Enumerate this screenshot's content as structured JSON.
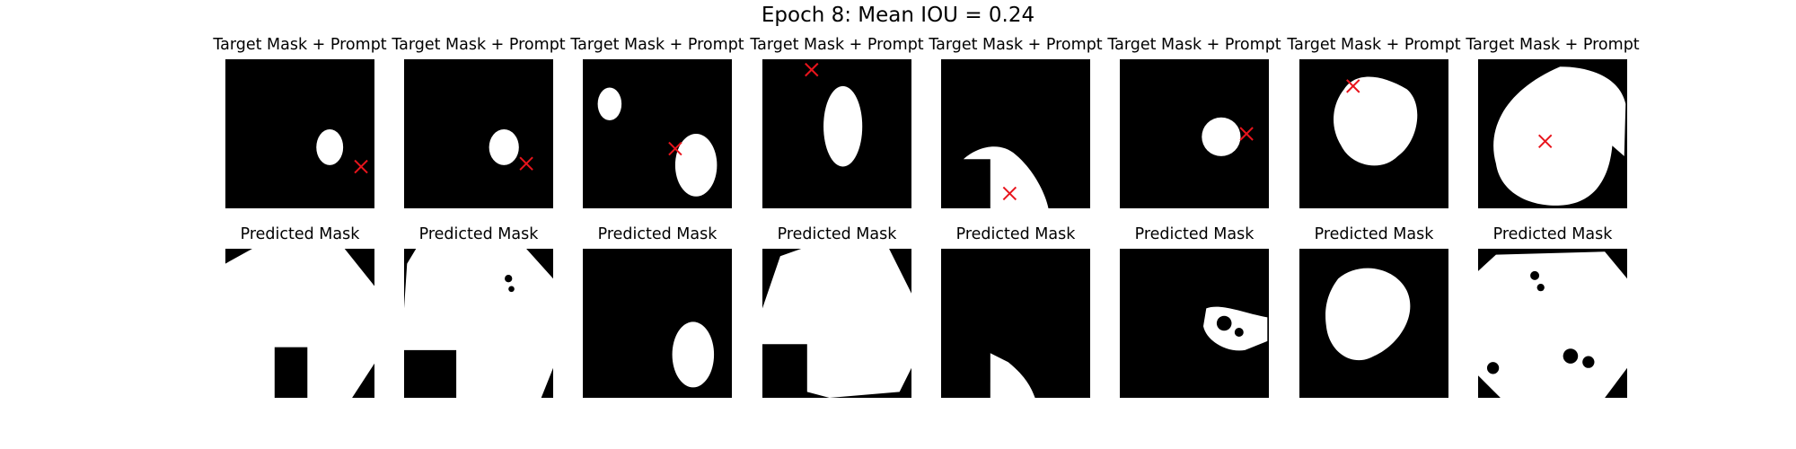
{
  "figure": {
    "title": "Epoch 8: Mean IOU = 0.24",
    "colors": {
      "background": "#000000",
      "mask": "#ffffff",
      "prompt": "#e8141c"
    }
  },
  "chart_data": {
    "type": "image_grid",
    "title": "Epoch 8: Mean IOU = 0.24",
    "epoch": 8,
    "mean_iou": 0.24,
    "rows": 2,
    "cols": 8,
    "row_titles": [
      "Target Mask + Prompt",
      "Predicted Mask"
    ],
    "prompt_marker": "x",
    "prompt_points": [
      {
        "x": 0.91,
        "y": 0.72
      },
      {
        "x": 0.82,
        "y": 0.7
      },
      {
        "x": 0.62,
        "y": 0.6
      },
      {
        "x": 0.33,
        "y": 0.07
      },
      {
        "x": 0.46,
        "y": 0.9
      },
      {
        "x": 0.85,
        "y": 0.5
      },
      {
        "x": 0.36,
        "y": 0.18
      },
      {
        "x": 0.45,
        "y": 0.55
      }
    ]
  },
  "panels": {
    "target_title": "Target Mask + Prompt",
    "predicted_title": "Predicted Mask"
  }
}
